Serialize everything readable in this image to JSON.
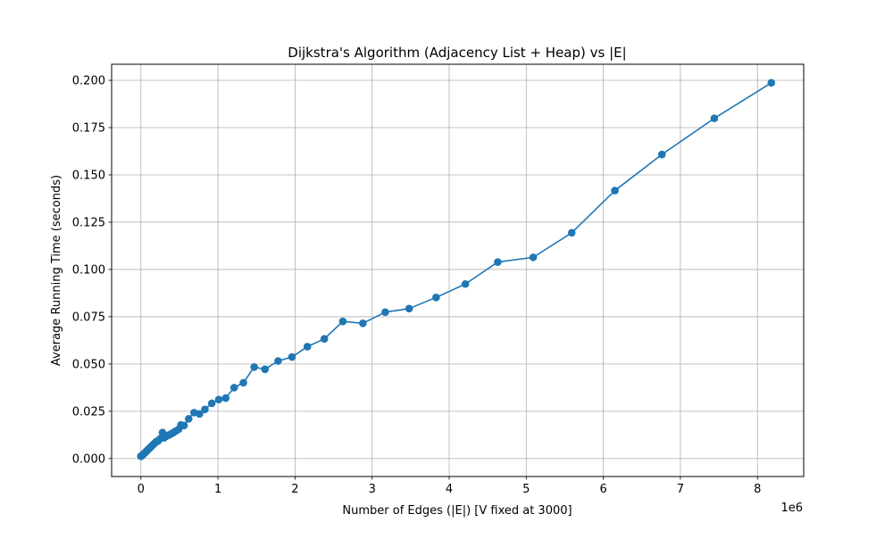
{
  "chart_data": {
    "type": "line",
    "title": "Dijkstra's Algorithm (Adjacency List + Heap) vs |E|",
    "xlabel": "Number of Edges (|E|) [V fixed at 3000]",
    "ylabel": "Average Running Time (seconds)",
    "x_offset_label": "1e6",
    "x_tick_labels": [
      "0",
      "1",
      "2",
      "3",
      "4",
      "5",
      "6",
      "7",
      "8"
    ],
    "x_tick_values": [
      0,
      1,
      2,
      3,
      4,
      5,
      6,
      7,
      8
    ],
    "y_tick_labels": [
      "0.000",
      "0.025",
      "0.050",
      "0.075",
      "0.100",
      "0.125",
      "0.150",
      "0.175",
      "0.200"
    ],
    "y_tick_values": [
      0,
      0.025,
      0.05,
      0.075,
      0.1,
      0.125,
      0.15,
      0.175,
      0.2
    ],
    "xlim": [
      -0.38,
      8.6
    ],
    "ylim": [
      -0.0095,
      0.2085
    ],
    "grid": true,
    "color": "#1f77b4",
    "series": [
      {
        "x": [
          0.0,
          0.003,
          0.006,
          0.01,
          0.015,
          0.02,
          0.03,
          0.04,
          0.05,
          0.06,
          0.07,
          0.08,
          0.09,
          0.1,
          0.12,
          0.14,
          0.16,
          0.18,
          0.2,
          0.22,
          0.25,
          0.28,
          0.3,
          0.33,
          0.36,
          0.39,
          0.42,
          0.45,
          0.49,
          0.52,
          0.56,
          0.62,
          0.69,
          0.76,
          0.83,
          0.92,
          1.01,
          1.1,
          1.21,
          1.33,
          1.47,
          1.61,
          1.78,
          1.96,
          2.16,
          2.38,
          2.62,
          2.88,
          3.17,
          3.48,
          3.83,
          4.21,
          4.63,
          5.09,
          5.59,
          6.15,
          6.76,
          7.44,
          8.18
        ],
        "y": [
          0.0012,
          0.0013,
          0.0014,
          0.0015,
          0.0017,
          0.0019,
          0.0022,
          0.0026,
          0.003,
          0.0034,
          0.0038,
          0.0042,
          0.0046,
          0.005,
          0.0058,
          0.0066,
          0.0074,
          0.0082,
          0.009,
          0.0092,
          0.0105,
          0.0138,
          0.011,
          0.0118,
          0.0124,
          0.013,
          0.0137,
          0.0145,
          0.0155,
          0.0178,
          0.0175,
          0.021,
          0.0243,
          0.0236,
          0.026,
          0.0292,
          0.0312,
          0.032,
          0.0375,
          0.0401,
          0.0484,
          0.0472,
          0.0516,
          0.0537,
          0.0592,
          0.0633,
          0.0725,
          0.0715,
          0.0774,
          0.0793,
          0.0852,
          0.0923,
          0.1039,
          0.1064,
          0.1194,
          0.1417,
          0.1608,
          0.1799,
          0.1987
        ]
      }
    ]
  }
}
